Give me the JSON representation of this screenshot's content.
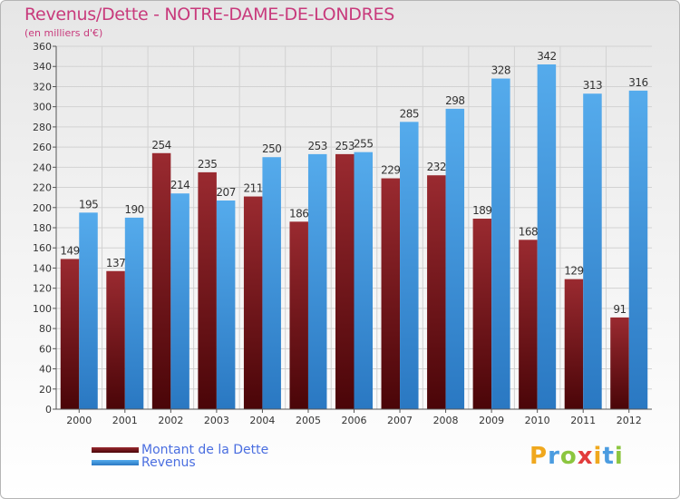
{
  "title": "Revenus/Dette - NOTRE-DAME-DE-LONDRES",
  "subtitle": "(en milliers d'€)",
  "logo": [
    "P",
    "r",
    "o",
    "x",
    "i",
    "t",
    "i"
  ],
  "colors": {
    "dette": "#6e0f16",
    "revenus": "#3f97dc",
    "title": "#c83a7c",
    "legend_text": "#4a6ee0"
  },
  "chart_data": {
    "type": "bar",
    "title": "Revenus/Dette - NOTRE-DAME-DE-LONDRES",
    "ylabel": "(en milliers d'€)",
    "categories": [
      "2000",
      "2001",
      "2002",
      "2003",
      "2004",
      "2005",
      "2006",
      "2007",
      "2008",
      "2009",
      "2010",
      "2011",
      "2012"
    ],
    "series": [
      {
        "name": "Montant de la Dette",
        "values": [
          149,
          137,
          254,
          235,
          211,
          186,
          253,
          229,
          232,
          189,
          168,
          129,
          91
        ]
      },
      {
        "name": "Revenus",
        "values": [
          195,
          190,
          214,
          207,
          250,
          253,
          255,
          285,
          298,
          328,
          342,
          313,
          316
        ]
      }
    ],
    "ylim": [
      0,
      360
    ],
    "yticks": [
      0,
      20,
      40,
      60,
      80,
      100,
      120,
      140,
      160,
      180,
      200,
      220,
      240,
      260,
      280,
      300,
      320,
      340,
      360
    ],
    "grid": true,
    "legend": "bottom-left"
  }
}
